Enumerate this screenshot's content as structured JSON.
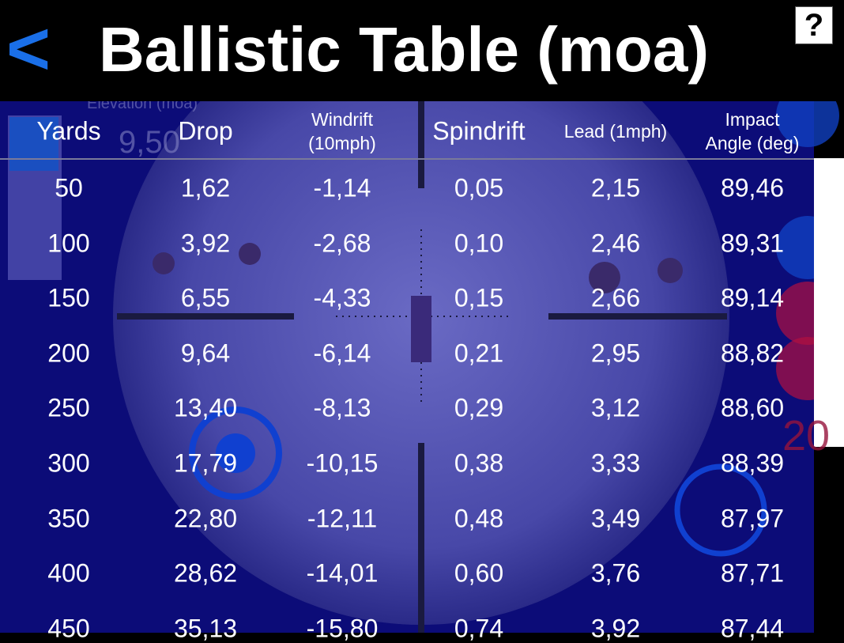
{
  "header": {
    "back": "<",
    "title": "Ballistic Table (moa)",
    "help": "?"
  },
  "background": {
    "elevation_label": "Elevation (moa)",
    "elevation_value": "9,50",
    "side_number": "20"
  },
  "table": {
    "columns": [
      "Yards",
      "Drop",
      "Windrift\n(10mph)",
      "Spindrift",
      "Lead (1mph)",
      "Impact\nAngle (deg)"
    ],
    "rows": [
      [
        "50",
        "1,62",
        "-1,14",
        "0,05",
        "2,15",
        "89,46"
      ],
      [
        "100",
        "3,92",
        "-2,68",
        "0,10",
        "2,46",
        "89,31"
      ],
      [
        "150",
        "6,55",
        "-4,33",
        "0,15",
        "2,66",
        "89,14"
      ],
      [
        "200",
        "9,64",
        "-6,14",
        "0,21",
        "2,95",
        "88,82"
      ],
      [
        "250",
        "13,40",
        "-8,13",
        "0,29",
        "3,12",
        "88,60"
      ],
      [
        "300",
        "17,79",
        "-10,15",
        "0,38",
        "3,33",
        "88,39"
      ],
      [
        "350",
        "22,80",
        "-12,11",
        "0,48",
        "3,49",
        "87,97"
      ],
      [
        "400",
        "28,62",
        "-14,01",
        "0,60",
        "3,76",
        "87,71"
      ],
      [
        "450",
        "35,13",
        "-15,80",
        "0,74",
        "3,92",
        "87,44"
      ]
    ]
  }
}
